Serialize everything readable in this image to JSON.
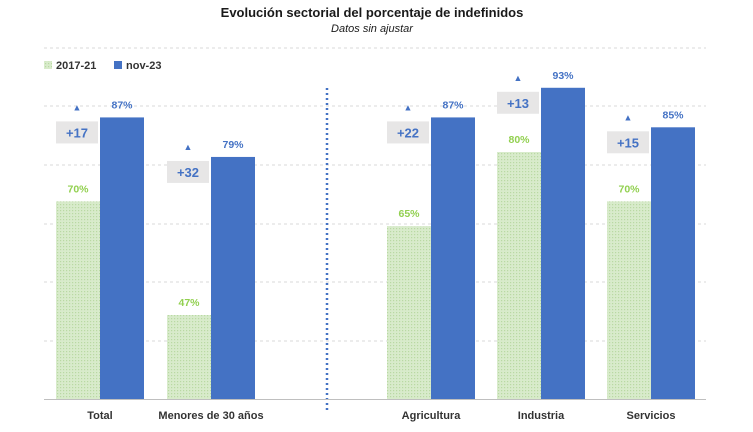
{
  "chart_data": {
    "type": "bar",
    "title": "Evolución sectorial del porcentaje de indefinidos",
    "subtitle": "Datos sin ajustar",
    "categories": [
      "Total",
      "Menores de 30 años",
      "Agricultura",
      "Industria",
      "Servicios"
    ],
    "series": [
      {
        "name": "2017-21",
        "color": "#c6e0b4",
        "label_color": "#92d050",
        "values": [
          70,
          47,
          65,
          80,
          70
        ]
      },
      {
        "name": "nov-23",
        "color": "#4472c4",
        "label_color": "#4472c4",
        "values": [
          87,
          79,
          87,
          93,
          85
        ]
      }
    ],
    "differences": [
      "+17",
      "+32",
      "+22",
      "+13",
      "+15"
    ],
    "value_suffix": "%",
    "ylim": [
      30,
      100
    ],
    "grid": true,
    "legend_position": "top-left",
    "separator_after_category": 1,
    "separator_color": "#4472c4",
    "difference_marker": "▲",
    "difference_color": "#4472c4",
    "difference_box_color": "#e7e6e6",
    "axis_color": "#bfbfbf",
    "grid_color": "#d9d9d9"
  }
}
